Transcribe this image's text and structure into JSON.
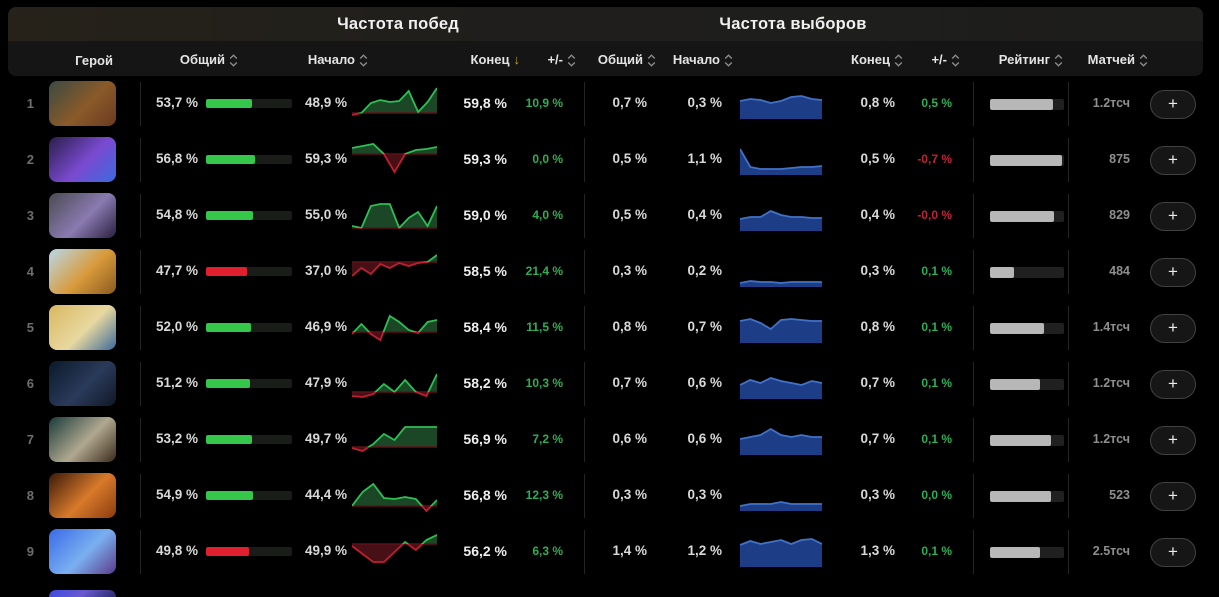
{
  "section_headers": {
    "win": "Частота побед",
    "pick": "Частота выборов"
  },
  "columns": {
    "hero": "Герой",
    "overall": "Общий",
    "start": "Начало",
    "end": "Конец",
    "delta": "+/-",
    "rating": "Рейтинг",
    "matches": "Матчей"
  },
  "sort": {
    "active_column": "win-end",
    "direction": "desc"
  },
  "colors": {
    "green_text": "#2fae52",
    "red_text": "#c02336",
    "green_bar": "#35c74a",
    "red_bar": "#e01f2f",
    "spark_green_line": "#2fbe54",
    "spark_green_fill": "#1c4726",
    "spark_red_line": "#c01f30",
    "spark_red_fill": "#471016",
    "spark_baseline": "#5c1218",
    "spark_blue_line": "#4272c8",
    "spark_blue_fill": "#1d3e86",
    "rating_fill": "#b7b7b7",
    "sort_active": "#c9a227"
  },
  "rows": [
    {
      "rank": "1",
      "hero_gradient": [
        "#3b4a42",
        "#8a5a2a",
        "#6b3a20"
      ],
      "win": {
        "overall": "53,7 %",
        "overall_val": 53.7,
        "bar": "green",
        "start": "48,9 %",
        "end": "59,8 %",
        "delta": "10,9 %",
        "delta_sign": "green",
        "spark": [
          29,
          27,
          17,
          14,
          16,
          15,
          5,
          26,
          16,
          2
        ],
        "spark_baseline": 27
      },
      "pick": {
        "overall": "0,7 %",
        "start": "0,3 %",
        "end": "0,8 %",
        "delta": "0,5 %",
        "delta_sign": "green",
        "spark": [
          12,
          10,
          11,
          14,
          12,
          8,
          7,
          10,
          11
        ]
      },
      "rating_pct": 85,
      "matches": "1.2тсч"
    },
    {
      "rank": "2",
      "hero_gradient": [
        "#2a1e4a",
        "#7a4ad0",
        "#3a6ae0"
      ],
      "win": {
        "overall": "56,8 %",
        "overall_val": 56.8,
        "bar": "green",
        "start": "59,3 %",
        "end": "59,3 %",
        "delta": "0,0 %",
        "delta_sign": "green",
        "spark": [
          6,
          4,
          2,
          12,
          30,
          12,
          8,
          7,
          5
        ],
        "spark_baseline": 12
      },
      "pick": {
        "overall": "0,5 %",
        "start": "1,1 %",
        "end": "0,5 %",
        "delta": "-0,7 %",
        "delta_sign": "red",
        "spark": [
          4,
          22,
          24,
          24,
          24,
          23,
          22,
          22,
          21
        ]
      },
      "rating_pct": 97,
      "matches": "875"
    },
    {
      "rank": "3",
      "hero_gradient": [
        "#4a4a52",
        "#8a7ab0",
        "#2a2040"
      ],
      "win": {
        "overall": "54,8 %",
        "overall_val": 54.8,
        "bar": "green",
        "start": "55,0 %",
        "end": "59,0 %",
        "delta": "4,0 %",
        "delta_sign": "green",
        "spark": [
          28,
          30,
          8,
          6,
          6,
          30,
          20,
          14,
          28,
          8
        ],
        "spark_baseline": 30
      },
      "pick": {
        "overall": "0,5 %",
        "start": "0,4 %",
        "end": "0,4 %",
        "delta": "-0,0 %",
        "delta_sign": "red",
        "spark": [
          18,
          16,
          16,
          10,
          14,
          16,
          16,
          17,
          17
        ]
      },
      "rating_pct": 87,
      "matches": "829"
    },
    {
      "rank": "4",
      "hero_gradient": [
        "#b8d8e8",
        "#d89a3a",
        "#8a5a20"
      ],
      "win": {
        "overall": "47,7 %",
        "overall_val": 47.7,
        "bar": "red",
        "start": "37,0 %",
        "end": "58,5 %",
        "delta": "21,4 %",
        "delta_sign": "green",
        "spark": [
          22,
          14,
          20,
          10,
          14,
          9,
          12,
          9,
          8,
          1
        ],
        "spark_baseline": 8
      },
      "pick": {
        "overall": "0,3 %",
        "start": "0,2 %",
        "end": "0,3 %",
        "delta": "0,1 %",
        "delta_sign": "green",
        "spark": [
          26,
          24,
          25,
          25,
          26,
          25,
          25,
          25,
          25
        ]
      },
      "rating_pct": 32,
      "matches": "484"
    },
    {
      "rank": "5",
      "hero_gradient": [
        "#d8b860",
        "#e8d8a0",
        "#3a6a9a"
      ],
      "win": {
        "overall": "52,0 %",
        "overall_val": 52.0,
        "bar": "green",
        "start": "46,9 %",
        "end": "58,4 %",
        "delta": "11,5 %",
        "delta_sign": "green",
        "spark": [
          24,
          14,
          24,
          30,
          6,
          12,
          20,
          23,
          12,
          10
        ],
        "spark_baseline": 22
      },
      "pick": {
        "overall": "0,8 %",
        "start": "0,7 %",
        "end": "0,8 %",
        "delta": "0,1 %",
        "delta_sign": "green",
        "spark": [
          8,
          6,
          10,
          16,
          7,
          6,
          7,
          8,
          8
        ]
      },
      "rating_pct": 73,
      "matches": "1.4тсч"
    },
    {
      "rank": "6",
      "hero_gradient": [
        "#0a1a2a",
        "#2a3a5a",
        "#101826"
      ],
      "win": {
        "overall": "51,2 %",
        "overall_val": 51.2,
        "bar": "green",
        "start": "47,9 %",
        "end": "58,2 %",
        "delta": "10,3 %",
        "delta_sign": "green",
        "spark": [
          30,
          31,
          28,
          18,
          26,
          14,
          26,
          30,
          8
        ],
        "spark_baseline": 26
      },
      "pick": {
        "overall": "0,7 %",
        "start": "0,6 %",
        "end": "0,7 %",
        "delta": "0,1 %",
        "delta_sign": "green",
        "spark": [
          16,
          11,
          14,
          9,
          12,
          14,
          16,
          12,
          14
        ]
      },
      "rating_pct": 68,
      "matches": "1.2тсч"
    },
    {
      "rank": "7",
      "hero_gradient": [
        "#1a3a3a",
        "#b0a890",
        "#3a2a1a"
      ],
      "win": {
        "overall": "53,2 %",
        "overall_val": 53.2,
        "bar": "green",
        "start": "49,7 %",
        "end": "56,9 %",
        "delta": "7,2 %",
        "delta_sign": "green",
        "spark": [
          26,
          29,
          22,
          12,
          18,
          5,
          5,
          5,
          5
        ],
        "spark_baseline": 25
      },
      "pick": {
        "overall": "0,6 %",
        "start": "0,6 %",
        "end": "0,7 %",
        "delta": "0,1 %",
        "delta_sign": "green",
        "spark": [
          14,
          12,
          10,
          4,
          10,
          12,
          10,
          12,
          12
        ]
      },
      "rating_pct": 83,
      "matches": "1.2тсч"
    },
    {
      "rank": "8",
      "hero_gradient": [
        "#3a1a0a",
        "#d87a2a",
        "#8a3a10"
      ],
      "win": {
        "overall": "54,9 %",
        "overall_val": 54.9,
        "bar": "green",
        "start": "44,4 %",
        "end": "56,8 %",
        "delta": "12,3 %",
        "delta_sign": "green",
        "spark": [
          28,
          14,
          6,
          20,
          21,
          19,
          21,
          33,
          22
        ],
        "spark_baseline": 28
      },
      "pick": {
        "overall": "0,3 %",
        "start": "0,3 %",
        "end": "0,3 %",
        "delta": "0,0 %",
        "delta_sign": "green",
        "spark": [
          25,
          23,
          23,
          23,
          21,
          23,
          23,
          23,
          23
        ]
      },
      "rating_pct": 83,
      "matches": "523"
    },
    {
      "rank": "9",
      "hero_gradient": [
        "#3a6ae8",
        "#7ab0f0",
        "#5a3a8a"
      ],
      "win": {
        "overall": "49,8 %",
        "overall_val": 49.8,
        "bar": "red",
        "start": "49,9 %",
        "end": "56,2 %",
        "delta": "6,3 %",
        "delta_sign": "green",
        "spark": [
          12,
          20,
          28,
          28,
          18,
          8,
          16,
          6,
          1
        ],
        "spark_baseline": 10
      },
      "pick": {
        "overall": "1,4 %",
        "start": "1,2 %",
        "end": "1,3 %",
        "delta": "0,1 %",
        "delta_sign": "green",
        "spark": [
          8,
          4,
          7,
          5,
          3,
          7,
          3,
          2,
          7
        ]
      },
      "rating_pct": 67,
      "matches": "2.5тсч"
    }
  ],
  "partial_row": {
    "hero_gradient": [
      "#3a4ae0",
      "#6a5ad0",
      "#2a2a6a"
    ]
  }
}
